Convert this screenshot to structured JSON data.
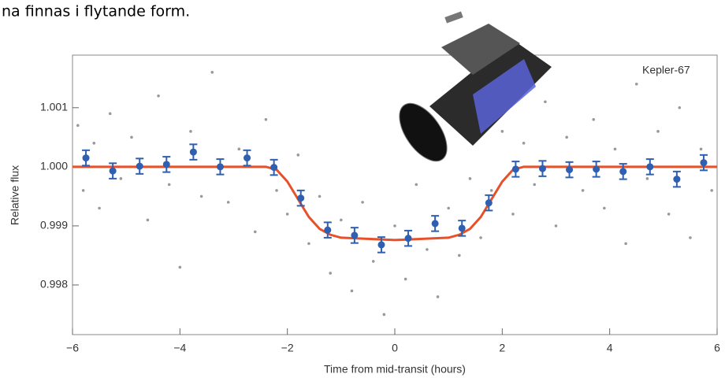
{
  "chart_data": {
    "type": "scatter",
    "heading": "na finnas i flytande form.",
    "annotation": "Kepler-67",
    "xlabel": "Time from mid-transit (hours)",
    "ylabel": "Relative flux",
    "xlim": [
      -6,
      6
    ],
    "xticks": [
      {
        "value": -6,
        "label": "−6"
      },
      {
        "value": -4,
        "label": "−4"
      },
      {
        "value": -2,
        "label": "−2"
      },
      0,
      2,
      4,
      6
    ],
    "ylim": [
      0.99716,
      1.00189
    ],
    "yticks": [
      0.998,
      0.999,
      {
        "value": 1,
        "label": "1.000"
      },
      1.001
    ],
    "points": {
      "color": "#999999",
      "x": [
        -5.9,
        -5.8,
        -5.6,
        -5.5,
        -5.3,
        -5.1,
        -4.9,
        -4.6,
        -4.4,
        -4.2,
        -4.0,
        -3.8,
        -3.6,
        -3.4,
        -3.1,
        -2.9,
        -2.6,
        -2.4,
        -2.2,
        -2.0,
        -1.8,
        -1.6,
        -1.4,
        -1.2,
        -1.0,
        -0.8,
        -0.6,
        -0.4,
        -0.2,
        0.0,
        0.2,
        0.4,
        0.6,
        0.8,
        1.0,
        1.2,
        1.4,
        1.6,
        1.8,
        2.0,
        2.2,
        2.4,
        2.6,
        2.8,
        3.0,
        3.2,
        3.5,
        3.7,
        3.9,
        4.1,
        4.3,
        4.5,
        4.7,
        4.9,
        5.1,
        5.3,
        5.5,
        5.7,
        5.9
      ],
      "values": [
        1.0007,
        0.9996,
        1.0004,
        0.9993,
        1.0009,
        0.9998,
        1.0005,
        0.9991,
        1.0012,
        0.9997,
        0.9983,
        1.0006,
        0.9995,
        1.0016,
        0.9994,
        1.0003,
        0.9989,
        1.0008,
        0.9996,
        0.9992,
        1.0002,
        0.9987,
        0.9995,
        0.9982,
        0.9991,
        0.9979,
        0.9994,
        0.9984,
        0.9975,
        0.999,
        0.9981,
        0.9997,
        0.9986,
        0.9978,
        0.9993,
        0.9985,
        0.9998,
        0.9988,
        0.9996,
        1.0006,
        0.9992,
        1.0004,
        0.9997,
        1.0011,
        0.999,
        1.0005,
        0.9996,
        1.0008,
        0.9993,
        1.0003,
        0.9987,
        1.0014,
        0.9998,
        1.0006,
        0.9992,
        1.001,
        0.9988,
        1.0003,
        0.9996
      ]
    },
    "model": {
      "color": "#e8502a",
      "x": [
        -6,
        -2.4,
        -2.2,
        -2.0,
        -1.8,
        -1.6,
        -1.4,
        -1.2,
        -1.0,
        0,
        1.0,
        1.2,
        1.4,
        1.6,
        1.8,
        2.0,
        2.2,
        2.4,
        6
      ],
      "values": [
        1.0,
        1.0,
        0.99995,
        0.99975,
        0.99945,
        0.99915,
        0.99895,
        0.99885,
        0.9988,
        0.99876,
        0.9988,
        0.99885,
        0.99895,
        0.99915,
        0.99945,
        0.99975,
        0.99995,
        1.0,
        1.0
      ]
    },
    "binned": {
      "color": "#2f5fb0",
      "x": [
        -5.75,
        -5.25,
        -4.75,
        -4.25,
        -3.75,
        -3.25,
        -2.75,
        -2.25,
        -1.75,
        -1.25,
        -0.75,
        -0.25,
        0.25,
        0.75,
        1.25,
        1.75,
        2.25,
        2.75,
        3.25,
        3.75,
        4.25,
        4.75,
        5.25,
        5.75
      ],
      "values": [
        1.00015,
        0.99993,
        1.00001,
        1.00004,
        1.00025,
        1.0,
        1.00015,
        0.99999,
        0.99947,
        0.99893,
        0.99884,
        0.99868,
        0.99879,
        0.99904,
        0.99896,
        0.99939,
        0.99996,
        0.99997,
        0.99995,
        0.99996,
        0.99992,
        1.0,
        0.99979,
        1.00007
      ],
      "errors": [
        0.00013,
        0.00013,
        0.00013,
        0.00013,
        0.00013,
        0.00013,
        0.00013,
        0.00013,
        0.00013,
        0.00013,
        0.00013,
        0.00013,
        0.00013,
        0.00013,
        0.00013,
        0.00013,
        0.00013,
        0.00013,
        0.00013,
        0.00013,
        0.00013,
        0.00013,
        0.00013,
        0.00013
      ]
    }
  }
}
